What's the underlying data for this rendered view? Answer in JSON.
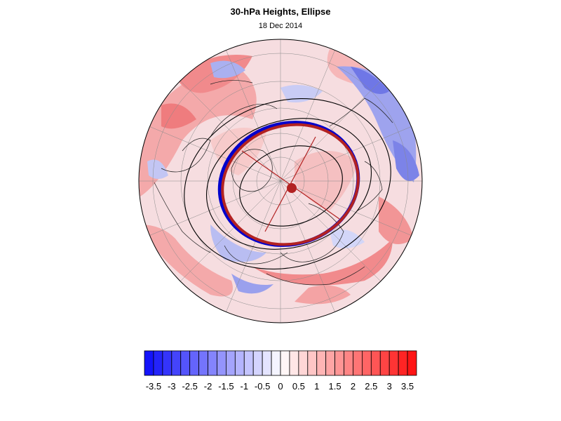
{
  "header": {
    "title": "30-hPa Heights, Ellipse",
    "subtitle": "18 Dec 2014"
  },
  "map": {
    "projection": "polar stereographic (North Pole)",
    "field": "30-hPa height anomaly",
    "colors": {
      "positive": "#ff0000",
      "negative": "#0000ff",
      "ellipse_fit": "#b22222",
      "vortex_edge": "#0000cc",
      "contours": "#000000"
    }
  },
  "colorbar": {
    "tick_labels": [
      "-3.5",
      "-3",
      "-2.5",
      "-2",
      "-1.5",
      "-1",
      "-0.5",
      "0",
      "0.5",
      "1",
      "1.5",
      "2",
      "2.5",
      "3",
      "3.5"
    ],
    "min": -3.75,
    "max": 3.75,
    "levels": 30
  }
}
